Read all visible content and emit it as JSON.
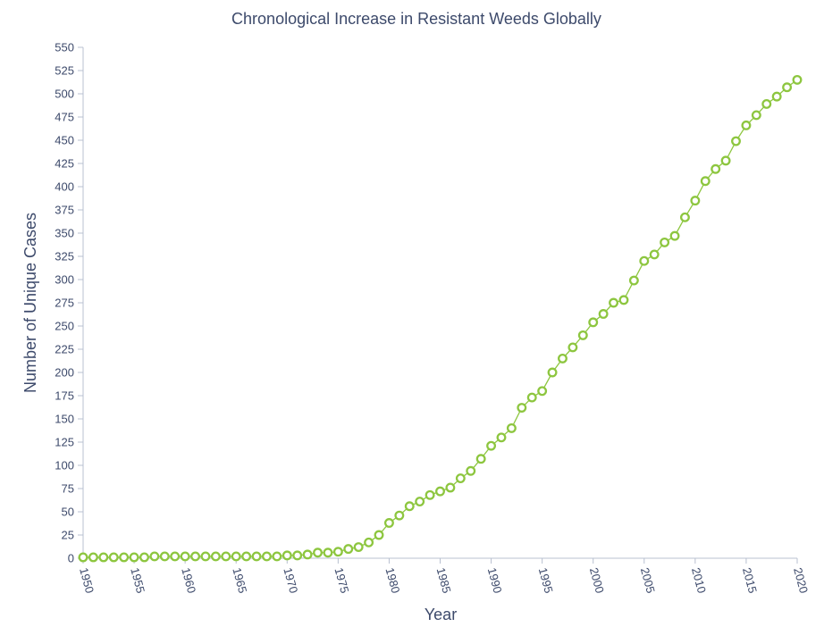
{
  "chart_data": {
    "type": "line",
    "title": "Chronological Increase in Resistant Weeds Globally",
    "xlabel": "Year",
    "ylabel": "Number of Unique Cases",
    "xlim": [
      1950,
      2020
    ],
    "ylim": [
      0,
      550
    ],
    "x_ticks": [
      "1950",
      "1955",
      "1960",
      "1965",
      "1970",
      "1975",
      "1980",
      "1985",
      "1990",
      "1995",
      "2000",
      "2005",
      "2010",
      "2015",
      "2020"
    ],
    "y_ticks": [
      "0",
      "25",
      "50",
      "75",
      "100",
      "125",
      "150",
      "175",
      "200",
      "225",
      "250",
      "275",
      "300",
      "325",
      "350",
      "375",
      "400",
      "425",
      "450",
      "475",
      "500",
      "525",
      "550"
    ],
    "grid": false,
    "legend": "none",
    "series": [
      {
        "color": "#8dc63f",
        "x": [
          1950,
          1951,
          1952,
          1953,
          1954,
          1955,
          1956,
          1957,
          1958,
          1959,
          1960,
          1961,
          1962,
          1963,
          1964,
          1965,
          1966,
          1967,
          1968,
          1969,
          1970,
          1971,
          1972,
          1973,
          1974,
          1975,
          1976,
          1977,
          1978,
          1979,
          1980,
          1981,
          1982,
          1983,
          1984,
          1985,
          1986,
          1987,
          1988,
          1989,
          1990,
          1991,
          1992,
          1993,
          1994,
          1995,
          1996,
          1997,
          1998,
          1999,
          2000,
          2001,
          2002,
          2003,
          2004,
          2005,
          2006,
          2007,
          2008,
          2009,
          2010,
          2011,
          2012,
          2013,
          2014,
          2015,
          2016,
          2017,
          2018,
          2019,
          2020
        ],
        "values": [
          1,
          1,
          1,
          1,
          1,
          1,
          1,
          2,
          2,
          2,
          2,
          2,
          2,
          2,
          2,
          2,
          2,
          2,
          2,
          2,
          3,
          3,
          4,
          6,
          6,
          7,
          10,
          12,
          17,
          25,
          38,
          46,
          56,
          61,
          68,
          72,
          76,
          86,
          94,
          107,
          121,
          130,
          140,
          162,
          173,
          180,
          200,
          215,
          227,
          240,
          254,
          263,
          275,
          278,
          299,
          320,
          327,
          340,
          347,
          367,
          385,
          406,
          419,
          428,
          449,
          466,
          477,
          489,
          497,
          507,
          515
        ]
      }
    ]
  }
}
